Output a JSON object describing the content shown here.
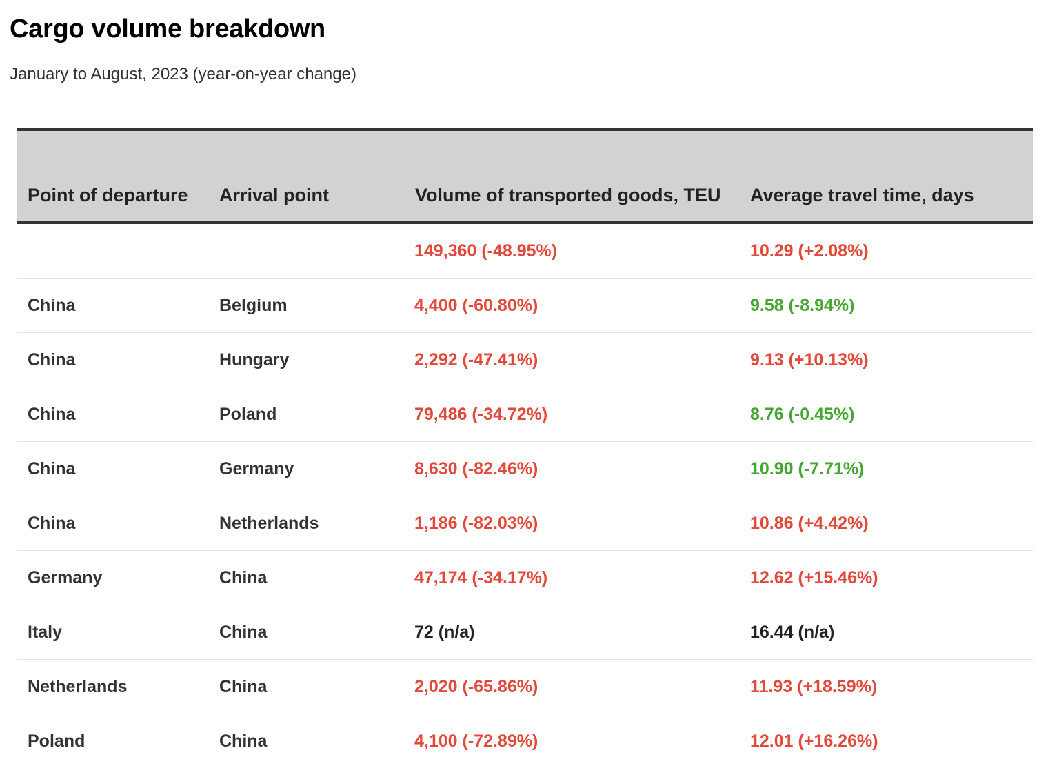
{
  "title": "Cargo volume breakdown",
  "subtitle": "January to August, 2023 (year-on-year change)",
  "colors": {
    "increase_bad": "#e2493b",
    "decrease_good": "#45a732",
    "no_change": "#222222"
  },
  "chart_data": {
    "type": "table",
    "columns": [
      "Point of departure",
      "Arrival point",
      "Volume of transported goods, TEU",
      "Average travel time, days"
    ],
    "rows": [
      {
        "departure": "",
        "arrival": "",
        "volume": "149,360 (-48.95%)",
        "volume_tone": "neg",
        "time": "10.29 (+2.08%)",
        "time_tone": "neg"
      },
      {
        "departure": "China",
        "arrival": "Belgium",
        "volume": "4,400 (-60.80%)",
        "volume_tone": "neg",
        "time": "9.58 (-8.94%)",
        "time_tone": "pos"
      },
      {
        "departure": "China",
        "arrival": "Hungary",
        "volume": "2,292 (-47.41%)",
        "volume_tone": "neg",
        "time": "9.13 (+10.13%)",
        "time_tone": "neg"
      },
      {
        "departure": "China",
        "arrival": "Poland",
        "volume": "79,486 (-34.72%)",
        "volume_tone": "neg",
        "time": "8.76 (-0.45%)",
        "time_tone": "pos"
      },
      {
        "departure": "China",
        "arrival": "Germany",
        "volume": "8,630 (-82.46%)",
        "volume_tone": "neg",
        "time": "10.90 (-7.71%)",
        "time_tone": "pos"
      },
      {
        "departure": "China",
        "arrival": "Netherlands",
        "volume": "1,186 (-82.03%)",
        "volume_tone": "neg",
        "time": "10.86 (+4.42%)",
        "time_tone": "neg"
      },
      {
        "departure": "Germany",
        "arrival": "China",
        "volume": "47,174 (-34.17%)",
        "volume_tone": "neg",
        "time": "12.62 (+15.46%)",
        "time_tone": "neg"
      },
      {
        "departure": "Italy",
        "arrival": "China",
        "volume": "72 (n/a)",
        "volume_tone": "neutral",
        "time": "16.44 (n/a)",
        "time_tone": "neutral"
      },
      {
        "departure": "Netherlands",
        "arrival": "China",
        "volume": "2,020 (-65.86%)",
        "volume_tone": "neg",
        "time": "11.93 (+18.59%)",
        "time_tone": "neg"
      },
      {
        "departure": "Poland",
        "arrival": "China",
        "volume": "4,100 (-72.89%)",
        "volume_tone": "neg",
        "time": "12.01 (+16.26%)",
        "time_tone": "neg"
      }
    ]
  }
}
